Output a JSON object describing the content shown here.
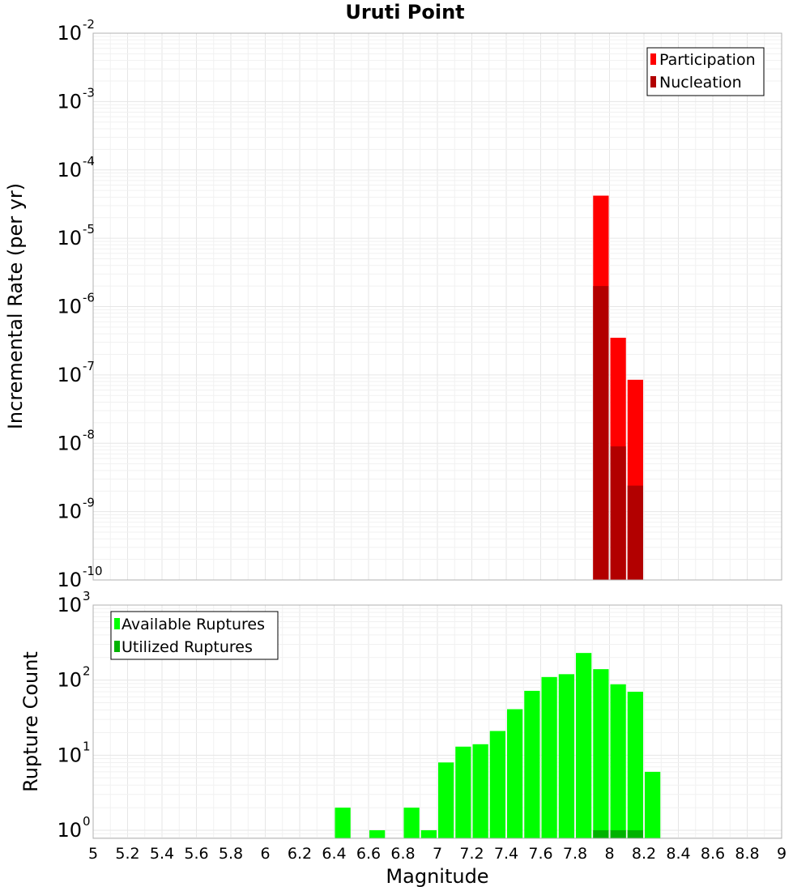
{
  "chart_data": [
    {
      "type": "bar",
      "title": "Uruti Point",
      "xlabel": "",
      "ylabel": "Incremental Rate (per yr)",
      "yscale": "log",
      "xlim": [
        5,
        9
      ],
      "ylim": [
        1e-10,
        0.01
      ],
      "y_ticks": [
        {
          "base": "10",
          "exp": "-10",
          "value": 1e-10
        },
        {
          "base": "10",
          "exp": "-9",
          "value": 1e-09
        },
        {
          "base": "10",
          "exp": "-8",
          "value": 1e-08
        },
        {
          "base": "10",
          "exp": "-7",
          "value": 1e-07
        },
        {
          "base": "10",
          "exp": "-6",
          "value": 1e-06
        },
        {
          "base": "10",
          "exp": "-5",
          "value": 1e-05
        },
        {
          "base": "10",
          "exp": "-4",
          "value": 0.0001
        },
        {
          "base": "10",
          "exp": "-3",
          "value": 0.001
        },
        {
          "base": "10",
          "exp": "-2",
          "value": 0.01
        }
      ],
      "bin_width": 0.1,
      "grid": true,
      "legend": "top-right",
      "series": [
        {
          "name": "Participation",
          "color": "#ff0000",
          "x": [
            7.95,
            8.05,
            8.15
          ],
          "y": [
            4.2e-05,
            3.5e-07,
            8.5e-08
          ]
        },
        {
          "name": "Nucleation",
          "color": "#b20000",
          "x": [
            7.95,
            8.05,
            8.15
          ],
          "y": [
            2e-06,
            9e-09,
            2.4e-09
          ]
        }
      ]
    },
    {
      "type": "bar",
      "title": "",
      "xlabel": "Magnitude",
      "ylabel": "Rupture Count",
      "yscale": "log",
      "xlim": [
        5,
        9
      ],
      "ylim": [
        0.78,
        1000
      ],
      "x_ticks": [
        "5",
        "5.2",
        "5.4",
        "5.6",
        "5.8",
        "6",
        "6.2",
        "6.4",
        "6.6",
        "6.8",
        "7",
        "7.2",
        "7.4",
        "7.6",
        "7.8",
        "8",
        "8.2",
        "8.4",
        "8.6",
        "8.8",
        "9"
      ],
      "y_ticks": [
        {
          "base": "10",
          "exp": "0",
          "value": 1
        },
        {
          "base": "10",
          "exp": "1",
          "value": 10
        },
        {
          "base": "10",
          "exp": "2",
          "value": 100
        },
        {
          "base": "10",
          "exp": "3",
          "value": 1000
        }
      ],
      "bin_width": 0.1,
      "grid": true,
      "legend": "top-left",
      "series": [
        {
          "name": "Available Ruptures",
          "color": "#00ff00",
          "x": [
            6.45,
            6.65,
            6.85,
            6.95,
            7.05,
            7.15,
            7.25,
            7.35,
            7.45,
            7.55,
            7.65,
            7.75,
            7.85,
            7.95,
            8.05,
            8.15,
            8.25
          ],
          "y": [
            2,
            1,
            2,
            1,
            8,
            13,
            14,
            21,
            41,
            72,
            110,
            120,
            230,
            140,
            88,
            70,
            6
          ]
        },
        {
          "name": "Utilized Ruptures",
          "color": "#00b200",
          "x": [
            7.95,
            8.05,
            8.15
          ],
          "y": [
            1,
            1,
            1
          ]
        }
      ]
    }
  ]
}
